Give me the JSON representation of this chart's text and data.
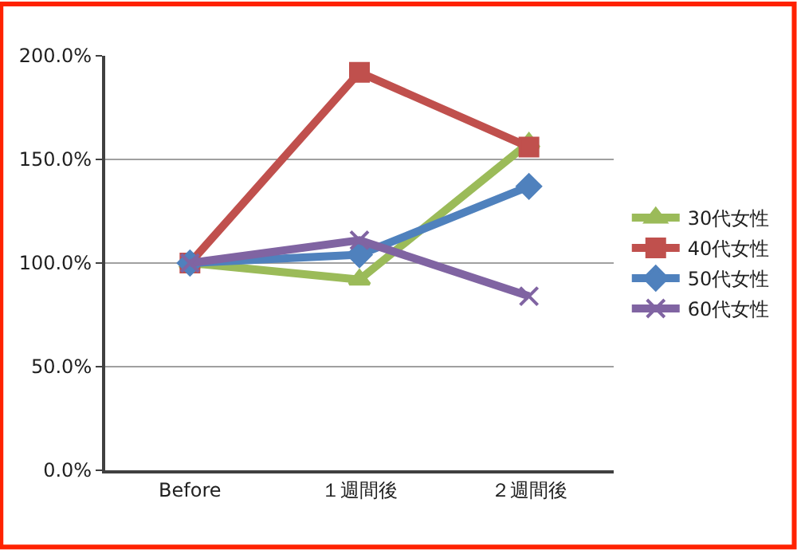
{
  "chart_data": {
    "type": "line",
    "categories": [
      "Before",
      "１週間後",
      "２週間後"
    ],
    "series": [
      {
        "name": "30代女性",
        "color": "#9bbb59",
        "marker": "triangle",
        "values": [
          100,
          92,
          158
        ]
      },
      {
        "name": "40代女性",
        "color": "#c0504d",
        "marker": "square",
        "values": [
          100,
          192,
          156
        ]
      },
      {
        "name": "50代女性",
        "color": "#4f81bd",
        "marker": "diamond",
        "values": [
          100,
          104,
          137
        ]
      },
      {
        "name": "60代女性",
        "color": "#8064a2",
        "marker": "cross",
        "values": [
          100,
          111,
          84
        ]
      }
    ],
    "ylim": [
      0,
      200
    ],
    "yticks": [
      {
        "value": 0,
        "label": "0.0%"
      },
      {
        "value": 50,
        "label": "50.0%"
      },
      {
        "value": 100,
        "label": "100.0%"
      },
      {
        "value": 150,
        "label": "150.0%"
      },
      {
        "value": 200,
        "label": "200.0%"
      }
    ],
    "grid": "y",
    "legend": "right",
    "line_style": "solid"
  }
}
